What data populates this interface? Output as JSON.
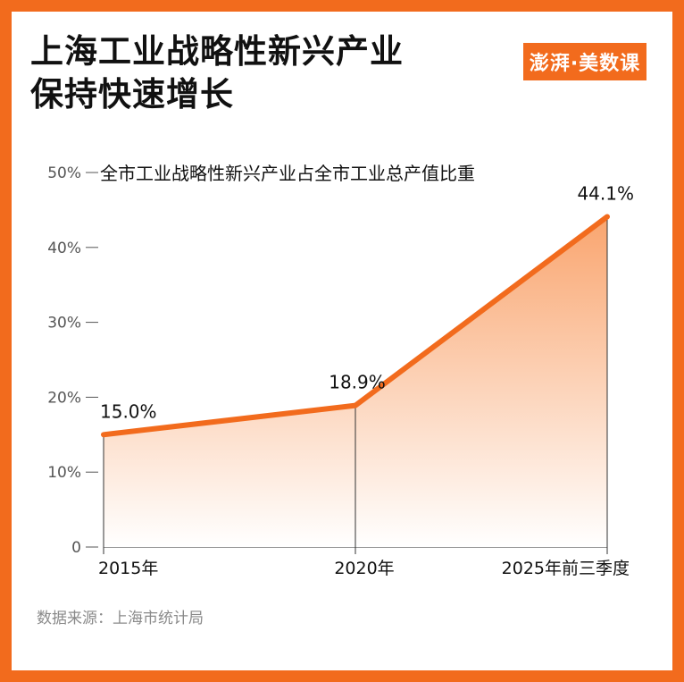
{
  "title_line1": "上海工业战略性新兴产业",
  "title_line2": "保持快速增长",
  "logo": {
    "text": "澎湃·美数课"
  },
  "source": "数据来源：上海市统计局",
  "colors": {
    "accent": "#f26b1d",
    "area_top": "#f9a56f",
    "area_bottom": "#ffffff"
  },
  "chart_data": {
    "type": "area",
    "title": "全市工业战略性新兴产业占全市工业总产值比重",
    "categories": [
      "2015年",
      "2020年",
      "2025年前三季度"
    ],
    "values": [
      15.0,
      18.9,
      44.1
    ],
    "data_labels": [
      "15.0%",
      "18.9%",
      "44.1%"
    ],
    "yticks": [
      "0",
      "10%",
      "20%",
      "30%",
      "40%",
      "50%"
    ],
    "ylim": [
      0,
      50
    ],
    "grid": false,
    "legend": "none"
  }
}
